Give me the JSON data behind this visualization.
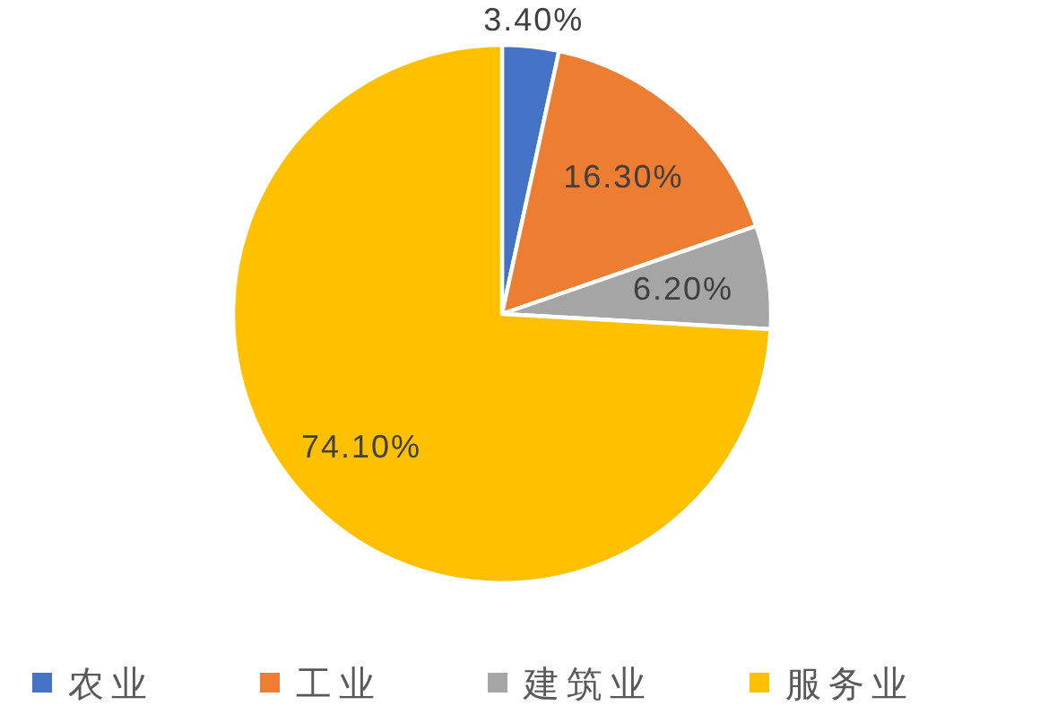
{
  "chart_data": {
    "type": "pie",
    "categories": [
      "农业",
      "工业",
      "建筑业",
      "服务业"
    ],
    "values": [
      3.4,
      16.3,
      6.2,
      74.1
    ],
    "colors": [
      "#4472c4",
      "#ed7d31",
      "#a5a5a5",
      "#ffc000"
    ],
    "value_labels": [
      "3.40%",
      "16.30%",
      "6.20%",
      "74.10%"
    ],
    "legend": "bottom"
  }
}
